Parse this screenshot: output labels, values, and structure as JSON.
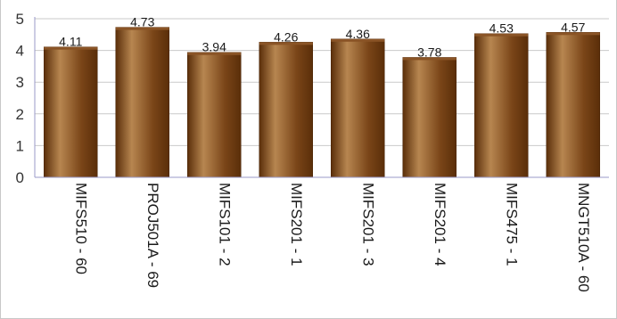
{
  "chart_data": {
    "type": "bar",
    "title": "",
    "xlabel": "",
    "ylabel": "",
    "ylim": [
      0,
      5
    ],
    "yticks": [
      0,
      1,
      2,
      3,
      4,
      5
    ],
    "grid": true,
    "legend": "none",
    "categories": [
      "MIFS510 - 60",
      "PROJ501A - 69",
      "MIFS101 - 2",
      "MIFS201 - 1",
      "MIFS201 - 3",
      "MIFS201 - 4",
      "MIFS475 - 1",
      "MNGT510A - 60"
    ],
    "values": [
      4.11,
      4.73,
      3.94,
      4.26,
      4.36,
      3.78,
      4.53,
      4.57
    ],
    "data_labels": [
      "4.11",
      "4.73",
      "3.94",
      "4.26",
      "4.36",
      "3.78",
      "4.53",
      "4.57"
    ],
    "colors": {
      "bar_dark": "#5a2e09",
      "bar_light": "#b78650",
      "bar_edge": "#4a2508",
      "grid": "#c9c9c9",
      "axis": "#9a9ac8"
    }
  }
}
